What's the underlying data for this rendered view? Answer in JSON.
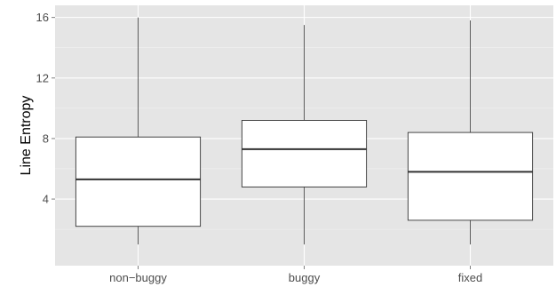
{
  "chart_data": {
    "type": "boxplot",
    "categories": [
      "non−buggy",
      "buggy",
      "fixed"
    ],
    "boxes": [
      {
        "min": 1.0,
        "q1": 2.2,
        "median": 5.3,
        "q3": 8.1,
        "max": 16.0
      },
      {
        "min": 1.0,
        "q1": 4.8,
        "median": 7.3,
        "q3": 9.2,
        "max": 15.5
      },
      {
        "min": 1.0,
        "q1": 2.6,
        "median": 5.8,
        "q3": 8.4,
        "max": 15.8
      }
    ],
    "xlabel": "",
    "ylabel": "Line Entropy",
    "ylim": [
      -0.4,
      16.8
    ],
    "yticks": [
      4,
      8,
      12,
      16
    ],
    "ytick_labels": [
      "4",
      "8",
      "12",
      "16"
    ],
    "grid": true,
    "colors": {
      "panel_background": "#e5e5e5",
      "grid_major": "#ffffff",
      "grid_minor": "#f2f2f2",
      "box_fill": "#ffffff",
      "box_line": "#333333",
      "tick_mark": "#7f7f7f",
      "tick_text": "#4d4d4d"
    }
  }
}
